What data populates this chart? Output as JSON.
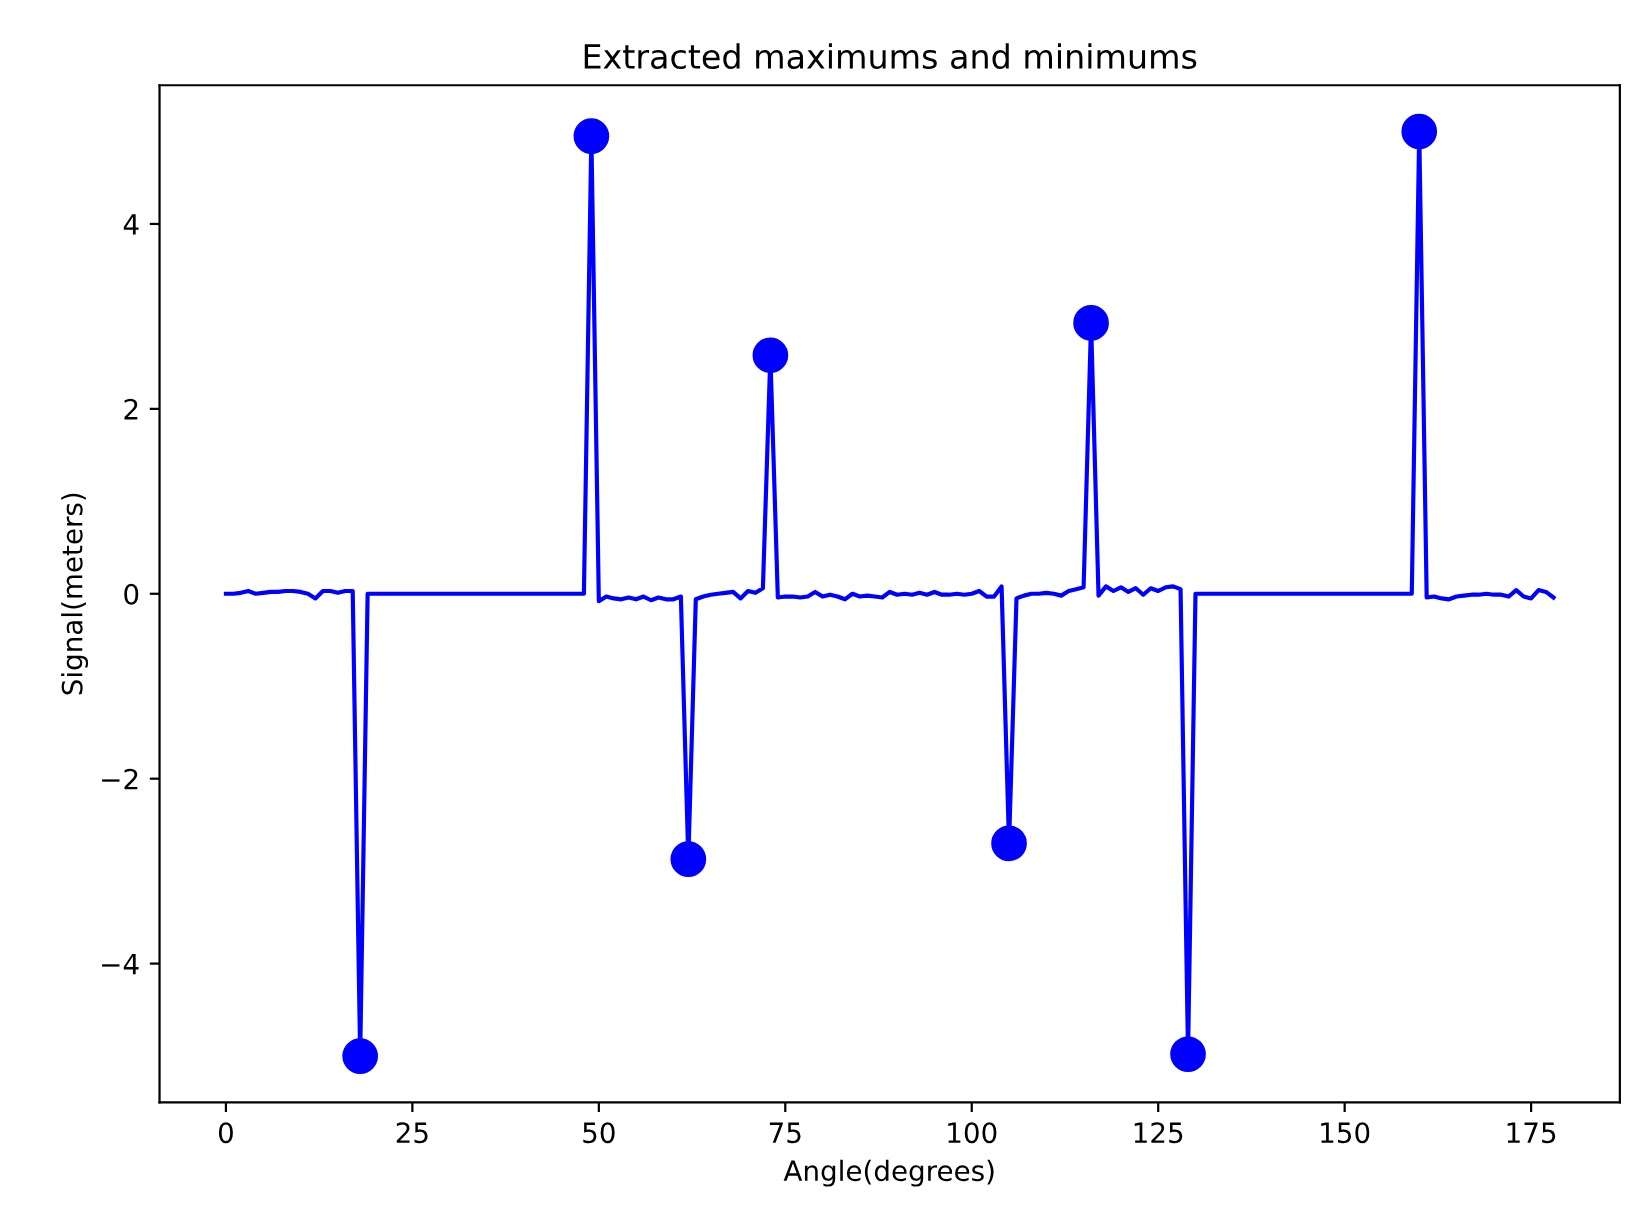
{
  "chart_data": {
    "type": "line",
    "title": "Extracted maximums and minimums",
    "xlabel": "Angle(degrees)",
    "ylabel": "Signal(meters)",
    "xlim": [
      -8.9,
      186.9
    ],
    "ylim": [
      -5.5,
      5.5
    ],
    "xticks": [
      0,
      25,
      50,
      75,
      100,
      125,
      150,
      175
    ],
    "yticks": [
      {
        "value": -4,
        "label": "−4"
      },
      {
        "value": -2,
        "label": "−2"
      },
      0,
      2,
      4
    ],
    "grid": false,
    "series": [
      {
        "color": "#0000ff",
        "marker": "none",
        "line_style": "solid",
        "x": [
          0,
          1,
          2,
          3,
          4,
          5,
          6,
          7,
          8,
          9,
          10,
          11,
          12,
          13,
          14,
          15,
          16,
          17,
          18,
          19,
          20,
          21,
          22,
          23,
          24,
          25,
          26,
          27,
          28,
          29,
          30,
          31,
          32,
          33,
          34,
          35,
          36,
          37,
          38,
          39,
          40,
          41,
          42,
          43,
          44,
          45,
          46,
          47,
          48,
          49,
          50,
          51,
          52,
          53,
          54,
          55,
          56,
          57,
          58,
          59,
          60,
          61,
          62,
          63,
          64,
          65,
          66,
          67,
          68,
          69,
          70,
          71,
          72,
          73,
          74,
          75,
          76,
          77,
          78,
          79,
          80,
          81,
          82,
          83,
          84,
          85,
          86,
          87,
          88,
          89,
          90,
          91,
          92,
          93,
          94,
          95,
          96,
          97,
          98,
          99,
          100,
          101,
          102,
          103,
          104,
          105,
          106,
          107,
          108,
          109,
          110,
          111,
          112,
          113,
          114,
          115,
          116,
          117,
          118,
          119,
          120,
          121,
          122,
          123,
          124,
          125,
          126,
          127,
          128,
          129,
          130,
          131,
          132,
          133,
          134,
          135,
          136,
          137,
          138,
          139,
          140,
          141,
          142,
          143,
          144,
          145,
          146,
          147,
          148,
          149,
          150,
          151,
          152,
          153,
          154,
          155,
          156,
          157,
          158,
          159,
          160,
          161,
          162,
          163,
          164,
          165,
          166,
          167,
          168,
          169,
          170,
          171,
          172,
          173,
          174,
          175,
          176,
          177,
          178
        ],
        "values": [
          0,
          0,
          0.01,
          0.03,
          0,
          0.01,
          0.02,
          0.02,
          0.03,
          0.03,
          0.02,
          0,
          -0.05,
          0.03,
          0.03,
          0.01,
          0.03,
          0.03,
          -5,
          0,
          0,
          0,
          0,
          0,
          0,
          0,
          0,
          0,
          0,
          0,
          0,
          0,
          0,
          0,
          0,
          0,
          0,
          0,
          0,
          0,
          0,
          0,
          0,
          0,
          0,
          0,
          0,
          0,
          0,
          4.95,
          -0.08,
          -0.03,
          -0.05,
          -0.06,
          -0.04,
          -0.06,
          -0.03,
          -0.07,
          -0.04,
          -0.06,
          -0.06,
          -0.03,
          -2.87,
          -0.06,
          -0.03,
          -0.01,
          0,
          0.01,
          0.02,
          -0.05,
          0.03,
          0.01,
          0.06,
          2.58,
          -0.04,
          -0.03,
          -0.03,
          -0.04,
          -0.03,
          0.02,
          -0.03,
          -0.01,
          -0.03,
          -0.06,
          0,
          -0.03,
          -0.02,
          -0.03,
          -0.04,
          0.02,
          -0.01,
          0,
          -0.01,
          0.01,
          -0.01,
          0.02,
          -0.01,
          -0.01,
          0,
          -0.01,
          0,
          0.03,
          -0.03,
          -0.03,
          0.08,
          -2.7,
          -0.05,
          -0.02,
          0,
          0,
          0.01,
          0,
          -0.02,
          0.03,
          0.05,
          0.07,
          2.93,
          -0.02,
          0.08,
          0.03,
          0.07,
          0.02,
          0.06,
          -0.01,
          0.06,
          0.03,
          0.07,
          0.08,
          0.05,
          -4.98,
          0,
          0,
          0,
          0,
          0,
          0,
          0,
          0,
          0,
          0,
          0,
          0,
          0,
          0,
          0,
          0,
          0,
          0,
          0,
          0,
          0,
          0,
          0,
          0,
          0,
          0,
          0,
          0,
          0,
          0,
          5.0,
          -0.04,
          -0.03,
          -0.05,
          -0.06,
          -0.03,
          -0.02,
          -0.01,
          -0.01,
          0,
          -0.01,
          -0.01,
          -0.03,
          0.04,
          -0.03,
          -0.05,
          0.04,
          0.02,
          -0.04
        ]
      },
      {
        "type": "scatter",
        "color": "#0000ff",
        "marker": "circle",
        "x": [
          18,
          49,
          62,
          73,
          105,
          116,
          129,
          160
        ],
        "values": [
          -5,
          4.95,
          -2.87,
          2.58,
          -2.7,
          2.93,
          -4.98,
          5.0
        ]
      }
    ]
  }
}
